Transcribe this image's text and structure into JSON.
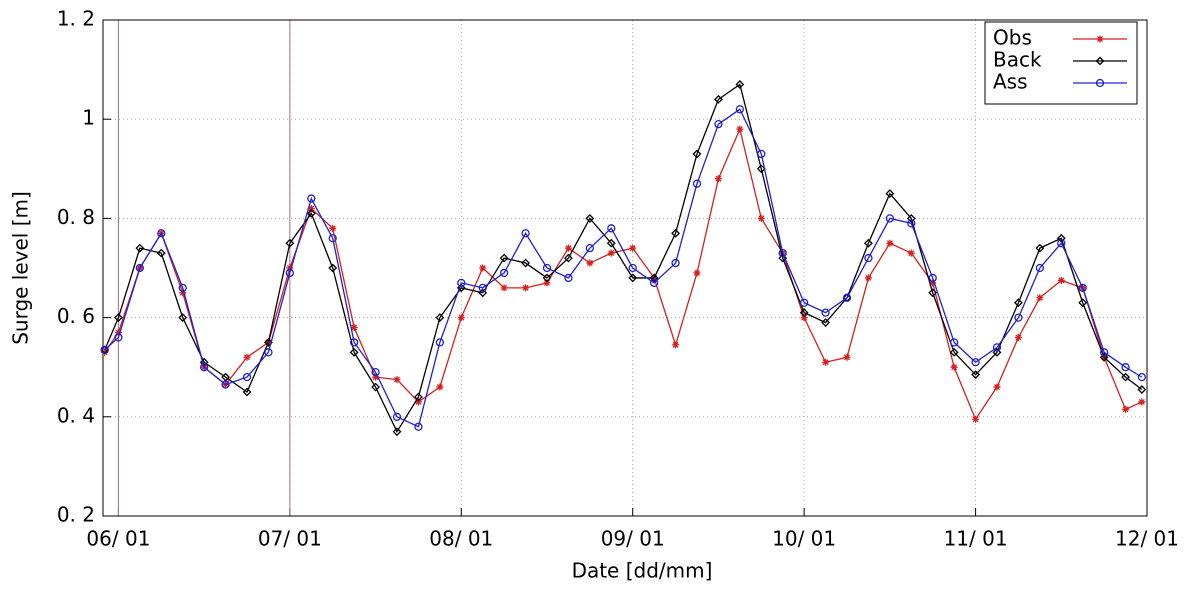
{
  "chart_data": {
    "type": "line",
    "xlabel": "Date [dd/mm]",
    "ylabel": "Surge level [m]",
    "x": [
      5.92,
      6,
      6.125,
      6.25,
      6.375,
      6.5,
      6.625,
      6.75,
      6.875,
      7,
      7.125,
      7.25,
      7.375,
      7.5,
      7.625,
      7.75,
      7.875,
      8,
      8.125,
      8.25,
      8.375,
      8.5,
      8.625,
      8.75,
      8.875,
      9,
      9.125,
      9.25,
      9.375,
      9.5,
      9.625,
      9.75,
      9.875,
      10,
      10.125,
      10.25,
      10.375,
      10.5,
      10.625,
      10.75,
      10.875,
      11,
      11.125,
      11.25,
      11.375,
      11.5,
      11.625,
      11.75,
      11.875,
      11.97
    ],
    "series": [
      {
        "name": "Obs",
        "color": "#d62020",
        "marker": "star",
        "values": [
          0.53,
          0.57,
          0.7,
          0.77,
          0.65,
          0.5,
          0.465,
          0.52,
          0.55,
          0.7,
          0.82,
          0.78,
          0.58,
          0.48,
          0.475,
          0.43,
          0.46,
          0.6,
          0.7,
          0.66,
          0.66,
          0.67,
          0.74,
          0.71,
          0.73,
          0.74,
          0.68,
          0.545,
          0.69,
          0.88,
          0.98,
          0.8,
          0.73,
          0.6,
          0.51,
          0.52,
          0.68,
          0.75,
          0.73,
          0.67,
          0.5,
          0.395,
          0.46,
          0.56,
          0.64,
          0.675,
          0.66,
          0.52,
          0.415,
          0.43
        ]
      },
      {
        "name": "Back",
        "color": "#000000",
        "marker": "diamond",
        "values": [
          0.535,
          0.6,
          0.74,
          0.73,
          0.6,
          0.51,
          0.48,
          0.45,
          0.55,
          0.75,
          0.81,
          0.7,
          0.53,
          0.46,
          0.37,
          0.44,
          0.6,
          0.66,
          0.65,
          0.72,
          0.71,
          0.68,
          0.72,
          0.8,
          0.75,
          0.68,
          0.68,
          0.77,
          0.93,
          1.04,
          1.07,
          0.9,
          0.72,
          0.61,
          0.59,
          0.64,
          0.75,
          0.85,
          0.8,
          0.65,
          0.53,
          0.485,
          0.53,
          0.63,
          0.74,
          0.76,
          0.63,
          0.52,
          0.48,
          0.455
        ]
      },
      {
        "name": "Ass",
        "color": "#2020d0",
        "marker": "circle",
        "values": [
          0.535,
          0.56,
          0.7,
          0.77,
          0.66,
          0.5,
          0.465,
          0.48,
          0.53,
          0.69,
          0.84,
          0.76,
          0.55,
          0.49,
          0.4,
          0.38,
          0.55,
          0.67,
          0.66,
          0.69,
          0.77,
          0.7,
          0.68,
          0.74,
          0.78,
          0.7,
          0.67,
          0.71,
          0.87,
          0.99,
          1.02,
          0.93,
          0.73,
          0.63,
          0.61,
          0.64,
          0.72,
          0.8,
          0.79,
          0.68,
          0.55,
          0.51,
          0.54,
          0.6,
          0.7,
          0.75,
          0.66,
          0.53,
          0.5,
          0.48
        ]
      }
    ],
    "xlim": [
      5.91,
      12
    ],
    "xticks": [
      {
        "value": 6,
        "label": "06/ 01"
      },
      {
        "value": 7,
        "label": "07/ 01"
      },
      {
        "value": 8,
        "label": "08/ 01"
      },
      {
        "value": 9,
        "label": "09/ 01"
      },
      {
        "value": 10,
        "label": "10/ 01"
      },
      {
        "value": 11,
        "label": "11/ 01"
      },
      {
        "value": 12,
        "label": "12/ 01"
      }
    ],
    "ylim": [
      0.2,
      1.2
    ],
    "yticks": [
      {
        "value": 0.2,
        "label": "0. 2"
      },
      {
        "value": 0.4,
        "label": "0. 4"
      },
      {
        "value": 0.6,
        "label": "0. 6"
      },
      {
        "value": 0.8,
        "label": "0. 8"
      },
      1,
      {
        "value": 1.2,
        "label": "1. 2"
      }
    ],
    "vlines": [
      6,
      7
    ],
    "vline_color": "#b07080",
    "grid": true,
    "legend": "upper right"
  }
}
